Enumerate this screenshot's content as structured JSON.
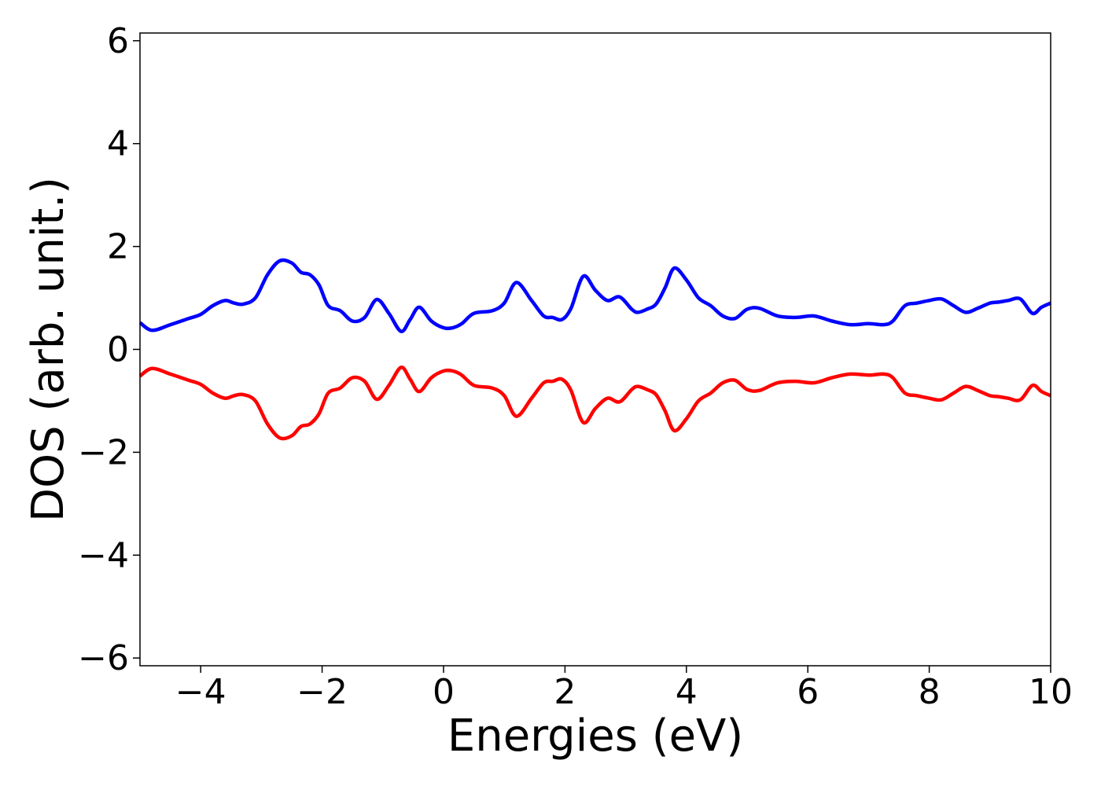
{
  "chart_data": {
    "type": "line",
    "title": "",
    "xlabel": "Energies (eV)",
    "ylabel": "DOS (arb. unit.)",
    "xlim": [
      -5,
      10
    ],
    "ylim": [
      -6.15,
      6.15
    ],
    "xticks": [
      -4,
      -2,
      0,
      2,
      4,
      6,
      8,
      10
    ],
    "yticks": [
      -6,
      -4,
      -2,
      0,
      2,
      4,
      6
    ],
    "xtick_labels": [
      "−4",
      "−2",
      "0",
      "2",
      "4",
      "6",
      "8",
      "10"
    ],
    "ytick_labels": [
      "−6",
      "−4",
      "−2",
      "0",
      "2",
      "4",
      "6"
    ],
    "grid": false,
    "legend": "none",
    "series": [
      {
        "color": "#0000ff",
        "x": [
          -5.0,
          -4.8,
          -4.5,
          -4.2,
          -4.0,
          -3.8,
          -3.6,
          -3.45,
          -3.3,
          -3.1,
          -2.9,
          -2.7,
          -2.5,
          -2.35,
          -2.2,
          -2.05,
          -1.9,
          -1.7,
          -1.5,
          -1.3,
          -1.1,
          -0.9,
          -0.7,
          -0.55,
          -0.4,
          -0.2,
          0.0,
          0.15,
          0.3,
          0.5,
          0.8,
          1.0,
          1.2,
          1.45,
          1.65,
          1.8,
          1.95,
          2.1,
          2.3,
          2.5,
          2.7,
          2.9,
          3.1,
          3.2,
          3.35,
          3.5,
          3.65,
          3.8,
          4.0,
          4.2,
          4.4,
          4.6,
          4.8,
          5.0,
          5.2,
          5.5,
          5.8,
          6.1,
          6.4,
          6.7,
          7.0,
          7.25,
          7.4,
          7.6,
          7.8,
          8.0,
          8.2,
          8.4,
          8.6,
          8.8,
          9.0,
          9.15,
          9.3,
          9.5,
          9.7,
          9.85,
          10.0
        ],
        "y": [
          0.52,
          0.37,
          0.48,
          0.6,
          0.68,
          0.85,
          0.95,
          0.9,
          0.88,
          1.0,
          1.45,
          1.72,
          1.68,
          1.5,
          1.45,
          1.25,
          0.85,
          0.75,
          0.55,
          0.62,
          0.97,
          0.7,
          0.35,
          0.58,
          0.82,
          0.55,
          0.42,
          0.42,
          0.5,
          0.7,
          0.75,
          0.9,
          1.3,
          0.95,
          0.65,
          0.62,
          0.58,
          0.8,
          1.42,
          1.15,
          0.95,
          1.02,
          0.78,
          0.72,
          0.78,
          0.88,
          1.2,
          1.58,
          1.35,
          1.0,
          0.85,
          0.65,
          0.6,
          0.78,
          0.8,
          0.65,
          0.62,
          0.65,
          0.55,
          0.48,
          0.5,
          0.48,
          0.55,
          0.85,
          0.9,
          0.95,
          0.98,
          0.85,
          0.72,
          0.8,
          0.9,
          0.92,
          0.95,
          0.98,
          0.7,
          0.82,
          0.9
        ]
      },
      {
        "color": "#ff0000",
        "x": [
          -5.0,
          -4.8,
          -4.5,
          -4.2,
          -4.0,
          -3.8,
          -3.6,
          -3.45,
          -3.3,
          -3.1,
          -2.9,
          -2.7,
          -2.5,
          -2.35,
          -2.2,
          -2.05,
          -1.9,
          -1.7,
          -1.5,
          -1.3,
          -1.1,
          -0.9,
          -0.7,
          -0.55,
          -0.4,
          -0.2,
          0.0,
          0.15,
          0.3,
          0.5,
          0.8,
          1.0,
          1.2,
          1.45,
          1.65,
          1.8,
          1.95,
          2.1,
          2.3,
          2.5,
          2.7,
          2.9,
          3.1,
          3.2,
          3.35,
          3.5,
          3.65,
          3.8,
          4.0,
          4.2,
          4.4,
          4.6,
          4.8,
          5.0,
          5.2,
          5.5,
          5.8,
          6.1,
          6.4,
          6.7,
          7.0,
          7.25,
          7.4,
          7.6,
          7.8,
          8.0,
          8.2,
          8.4,
          8.6,
          8.8,
          9.0,
          9.15,
          9.3,
          9.5,
          9.7,
          9.85,
          10.0
        ],
        "y": [
          -0.52,
          -0.37,
          -0.48,
          -0.6,
          -0.68,
          -0.85,
          -0.95,
          -0.9,
          -0.88,
          -1.0,
          -1.45,
          -1.72,
          -1.68,
          -1.5,
          -1.45,
          -1.25,
          -0.85,
          -0.75,
          -0.55,
          -0.62,
          -0.97,
          -0.7,
          -0.35,
          -0.58,
          -0.82,
          -0.55,
          -0.42,
          -0.42,
          -0.5,
          -0.7,
          -0.75,
          -0.9,
          -1.3,
          -0.95,
          -0.65,
          -0.62,
          -0.58,
          -0.8,
          -1.42,
          -1.15,
          -0.95,
          -1.02,
          -0.78,
          -0.72,
          -0.78,
          -0.88,
          -1.2,
          -1.58,
          -1.35,
          -1.0,
          -0.85,
          -0.65,
          -0.6,
          -0.78,
          -0.8,
          -0.65,
          -0.62,
          -0.65,
          -0.55,
          -0.48,
          -0.5,
          -0.48,
          -0.55,
          -0.85,
          -0.9,
          -0.95,
          -0.98,
          -0.85,
          -0.72,
          -0.8,
          -0.9,
          -0.92,
          -0.95,
          -0.98,
          -0.7,
          -0.82,
          -0.9
        ]
      }
    ]
  }
}
